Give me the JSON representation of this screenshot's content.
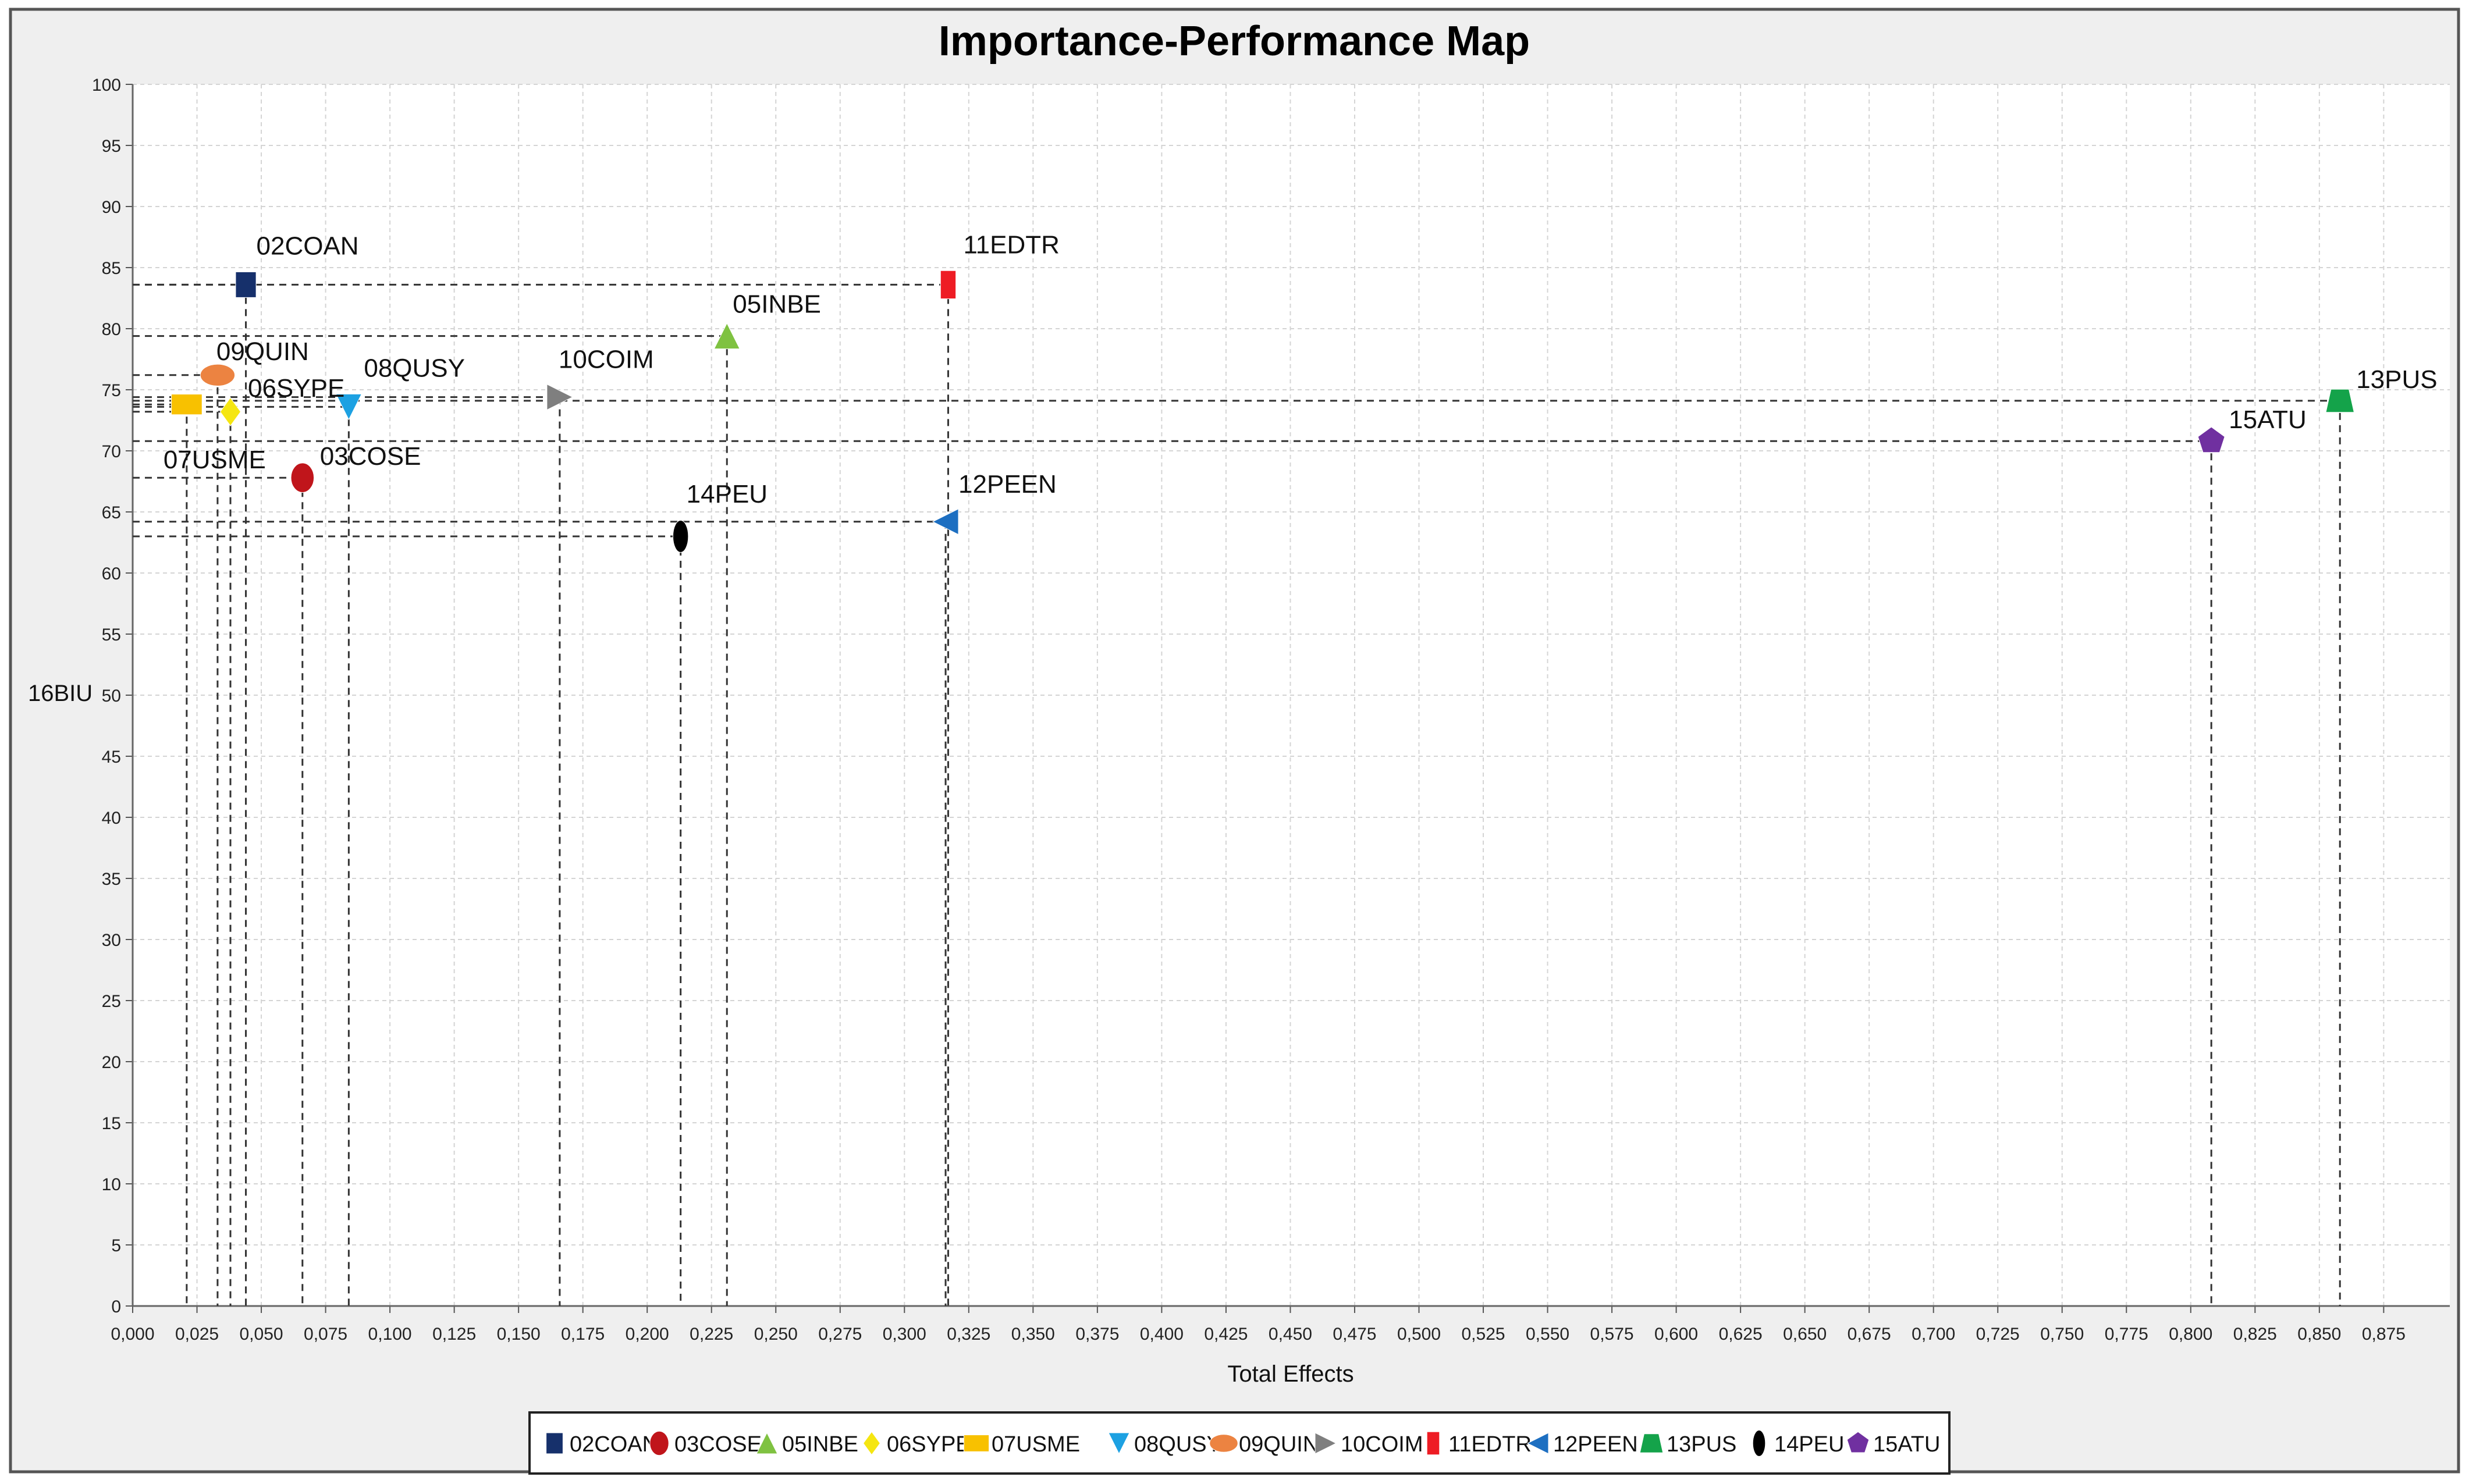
{
  "chart_data": {
    "type": "scatter",
    "title": "Importance-Performance Map",
    "xlabel": "Total Effects",
    "ylabel": "16BIU",
    "xlim": [
      0,
      0.9
    ],
    "ylim": [
      0,
      100
    ],
    "x_ticks": [
      "0,000",
      "0,025",
      "0,050",
      "0,075",
      "0,100",
      "0,125",
      "0,150",
      "0,175",
      "0,200",
      "0,225",
      "0,250",
      "0,275",
      "0,300",
      "0,325",
      "0,350",
      "0,375",
      "0,400",
      "0,425",
      "0,450",
      "0,475",
      "0,500",
      "0,525",
      "0,550",
      "0,575",
      "0,600",
      "0,625",
      "0,650",
      "0,675",
      "0,700",
      "0,725",
      "0,750",
      "0,775",
      "0,800",
      "0,825",
      "0,850",
      "0,875"
    ],
    "y_ticks": [
      "0",
      "5",
      "10",
      "15",
      "20",
      "25",
      "30",
      "35",
      "40",
      "45",
      "50",
      "55",
      "60",
      "65",
      "70",
      "75",
      "80",
      "85",
      "90",
      "95",
      "100"
    ],
    "grid": true,
    "legend_position": "bottom",
    "series": [
      {
        "name": "02COAN",
        "x": 0.044,
        "y": 83.6,
        "color": "#16306b",
        "marker": "square"
      },
      {
        "name": "03COSE",
        "x": 0.066,
        "y": 67.8,
        "color": "#c0151b",
        "marker": "ellipse"
      },
      {
        "name": "05INBE",
        "x": 0.231,
        "y": 79.4,
        "color": "#7fc241",
        "marker": "triangle-up"
      },
      {
        "name": "06SYPE",
        "x": 0.038,
        "y": 73.2,
        "color": "#f5e611",
        "marker": "diamond"
      },
      {
        "name": "07USME",
        "x": 0.021,
        "y": 73.8,
        "color": "#f8c100",
        "marker": "rect-wide"
      },
      {
        "name": "08QUSY",
        "x": 0.084,
        "y": 73.6,
        "color": "#1da1e2",
        "marker": "triangle-down"
      },
      {
        "name": "09QUIN",
        "x": 0.033,
        "y": 76.2,
        "color": "#ec8341",
        "marker": "ellipse-wide"
      },
      {
        "name": "10COIM",
        "x": 0.166,
        "y": 74.4,
        "color": "#7f7f7f",
        "marker": "triangle-right"
      },
      {
        "name": "11EDTR",
        "x": 0.317,
        "y": 83.6,
        "color": "#ee1c24",
        "marker": "rect-tall"
      },
      {
        "name": "12PEEN",
        "x": 0.316,
        "y": 64.2,
        "color": "#1d6fc1",
        "marker": "triangle-left"
      },
      {
        "name": "13PUS",
        "x": 0.858,
        "y": 74.1,
        "color": "#14a34a",
        "marker": "trapezoid"
      },
      {
        "name": "14PEU",
        "x": 0.213,
        "y": 63.0,
        "color": "#000000",
        "marker": "ellipse-tall"
      },
      {
        "name": "15ATU",
        "x": 0.808,
        "y": 70.8,
        "color": "#7030a0",
        "marker": "pentagon"
      }
    ]
  }
}
